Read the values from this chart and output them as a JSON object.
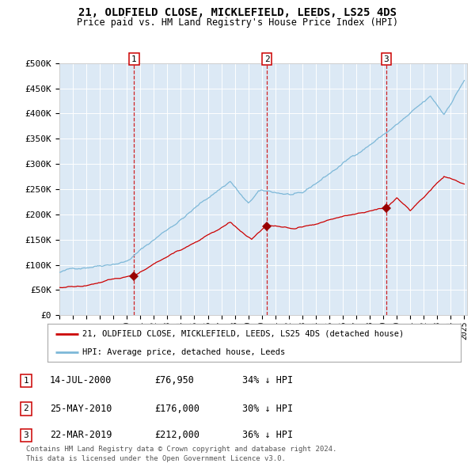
{
  "title": "21, OLDFIELD CLOSE, MICKLEFIELD, LEEDS, LS25 4DS",
  "subtitle": "Price paid vs. HM Land Registry's House Price Index (HPI)",
  "plot_bg_color": "#dce9f5",
  "ylim": [
    0,
    500000
  ],
  "yticks": [
    0,
    50000,
    100000,
    150000,
    200000,
    250000,
    300000,
    350000,
    400000,
    450000,
    500000
  ],
  "ytick_labels": [
    "£0",
    "£50K",
    "£100K",
    "£150K",
    "£200K",
    "£250K",
    "£300K",
    "£350K",
    "£400K",
    "£450K",
    "£500K"
  ],
  "x_start_year": 1995,
  "x_end_year": 2025,
  "purchase_dates": [
    2000.54,
    2010.39,
    2019.22
  ],
  "purchase_prices": [
    76950,
    176000,
    212000
  ],
  "sale_labels": [
    "1",
    "2",
    "3"
  ],
  "legend_line1": "21, OLDFIELD CLOSE, MICKLEFIELD, LEEDS, LS25 4DS (detached house)",
  "legend_line2": "HPI: Average price, detached house, Leeds",
  "table_entries": [
    {
      "label": "1",
      "date": "14-JUL-2000",
      "price": "£76,950",
      "hpi": "34% ↓ HPI"
    },
    {
      "label": "2",
      "date": "25-MAY-2010",
      "price": "£176,000",
      "hpi": "30% ↓ HPI"
    },
    {
      "label": "3",
      "date": "22-MAR-2019",
      "price": "£212,000",
      "hpi": "36% ↓ HPI"
    }
  ],
  "footnote1": "Contains HM Land Registry data © Crown copyright and database right 2024.",
  "footnote2": "This data is licensed under the Open Government Licence v3.0.",
  "hpi_line_color": "#7db8d8",
  "price_line_color": "#cc0000",
  "vline_color": "#cc0000",
  "marker_color": "#990000"
}
